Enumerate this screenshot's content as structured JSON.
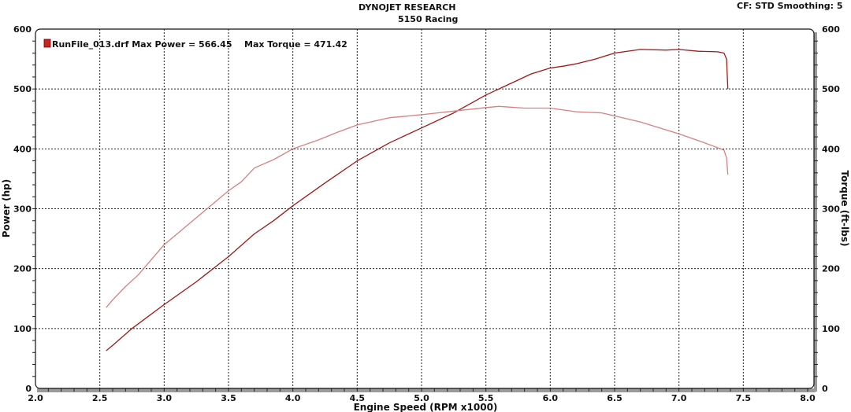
{
  "header": {
    "title": "DYNOJET RESEARCH",
    "subtitle": "5150 Racing",
    "settings": "CF: STD  Smoothing: 5"
  },
  "chart_data": {
    "type": "line",
    "xlabel": "Engine Speed (RPM x1000)",
    "ylabel_left": "Power (hp)",
    "ylabel_right": "Torque (ft-lbs)",
    "xlim": [
      2.0,
      8.0
    ],
    "ylim": [
      0,
      600
    ],
    "x_ticks": [
      "2.0",
      "2.5",
      "3.0",
      "3.5",
      "4.0",
      "4.5",
      "5.0",
      "5.5",
      "6.0",
      "6.5",
      "7.0",
      "7.5",
      "8.0"
    ],
    "y_ticks": [
      "0",
      "100",
      "200",
      "300",
      "400",
      "500",
      "600"
    ],
    "grid": true,
    "legend": {
      "position": "top-left",
      "text": "RunFile_013.drf Max Power = 566.45",
      "torque_text": "Max Torque = 471.42",
      "swatch_color": "#cc2222"
    },
    "series": [
      {
        "key": "power",
        "color": "#a01818",
        "points": [
          [
            2.55,
            63
          ],
          [
            2.6,
            72
          ],
          [
            2.75,
            100
          ],
          [
            3.0,
            140
          ],
          [
            3.25,
            178
          ],
          [
            3.5,
            220
          ],
          [
            3.7,
            258
          ],
          [
            3.85,
            280
          ],
          [
            4.0,
            305
          ],
          [
            4.25,
            343
          ],
          [
            4.5,
            380
          ],
          [
            4.75,
            410
          ],
          [
            5.0,
            435
          ],
          [
            5.25,
            460
          ],
          [
            5.5,
            490
          ],
          [
            5.7,
            510
          ],
          [
            5.85,
            525
          ],
          [
            6.0,
            535
          ],
          [
            6.1,
            538
          ],
          [
            6.2,
            542
          ],
          [
            6.35,
            550
          ],
          [
            6.5,
            560
          ],
          [
            6.7,
            566
          ],
          [
            6.9,
            565
          ],
          [
            7.0,
            566
          ],
          [
            7.15,
            563
          ],
          [
            7.3,
            562
          ],
          [
            7.35,
            560
          ],
          [
            7.37,
            550
          ],
          [
            7.38,
            500
          ]
        ]
      },
      {
        "key": "torque",
        "color": "#d88080",
        "points": [
          [
            2.55,
            135
          ],
          [
            2.6,
            148
          ],
          [
            2.7,
            170
          ],
          [
            2.8,
            190
          ],
          [
            3.0,
            240
          ],
          [
            3.25,
            285
          ],
          [
            3.5,
            330
          ],
          [
            3.6,
            345
          ],
          [
            3.7,
            368
          ],
          [
            3.85,
            382
          ],
          [
            4.0,
            400
          ],
          [
            4.2,
            415
          ],
          [
            4.35,
            428
          ],
          [
            4.5,
            440
          ],
          [
            4.75,
            452
          ],
          [
            5.0,
            457
          ],
          [
            5.25,
            463
          ],
          [
            5.5,
            469
          ],
          [
            5.6,
            471
          ],
          [
            5.8,
            468
          ],
          [
            6.0,
            468
          ],
          [
            6.2,
            462
          ],
          [
            6.4,
            460
          ],
          [
            6.5,
            455
          ],
          [
            6.7,
            445
          ],
          [
            7.0,
            425
          ],
          [
            7.2,
            410
          ],
          [
            7.3,
            402
          ],
          [
            7.35,
            398
          ],
          [
            7.37,
            385
          ],
          [
            7.38,
            357
          ]
        ]
      }
    ]
  }
}
